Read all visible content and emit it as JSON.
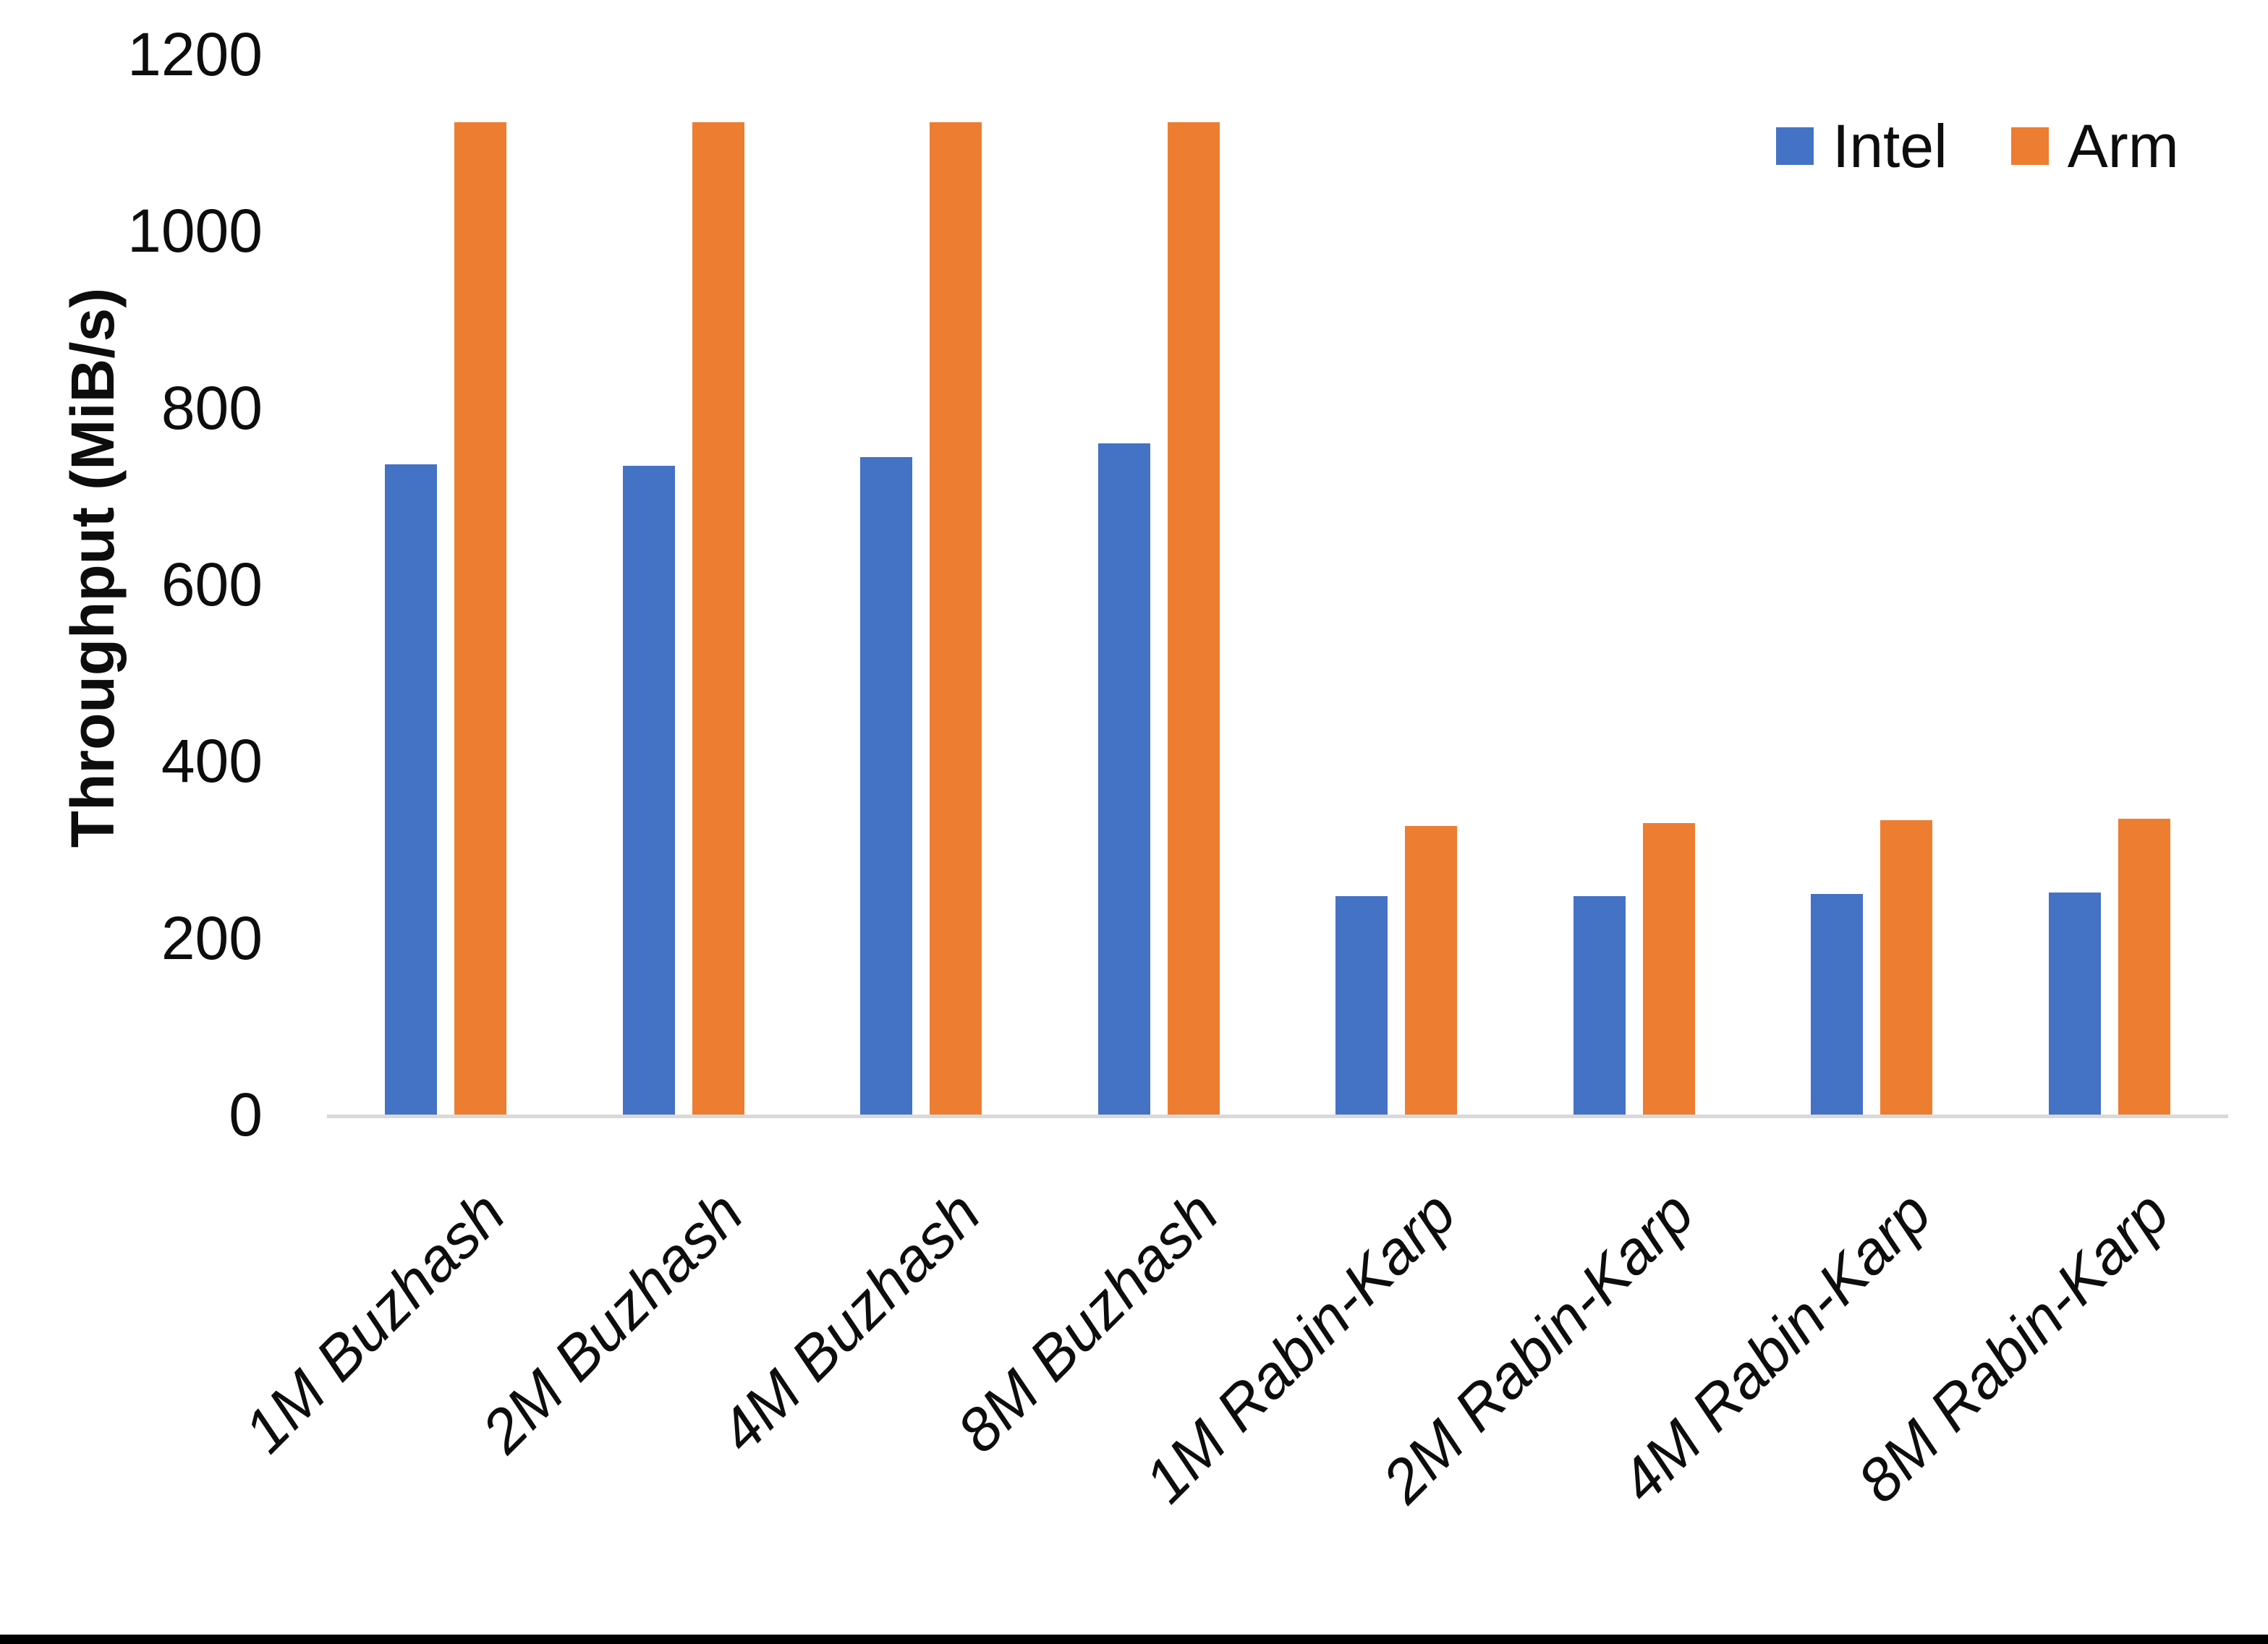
{
  "chart_data": {
    "type": "bar",
    "title": "",
    "xlabel": "",
    "ylabel": "Throughput (MiB/s)",
    "ylim": [
      0,
      1200
    ],
    "yticks": [
      0,
      200,
      400,
      600,
      800,
      1000,
      1200
    ],
    "grid": false,
    "legend_position": "top-right",
    "categories": [
      "1M Buzhash",
      "2M Buzhash",
      "4M Buzhash",
      "8M Buzhash",
      "1M Rabin-Karp",
      "2M Rabin-Karp",
      "4M Rabin-Karp",
      "8M Rabin-Karp"
    ],
    "series": [
      {
        "name": "Intel",
        "color": "#4472C4",
        "values": [
          736,
          734,
          744,
          760,
          247,
          247,
          250,
          251
        ]
      },
      {
        "name": "Arm",
        "color": "#ED7D31",
        "values": [
          1123,
          1123,
          1123,
          1123,
          327,
          330,
          333,
          335
        ]
      }
    ]
  }
}
